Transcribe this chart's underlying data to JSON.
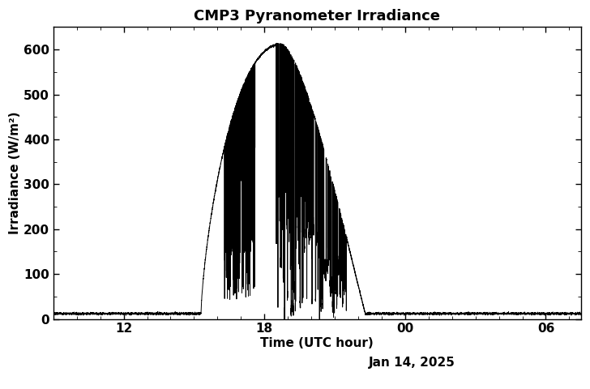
{
  "title": "CMP3 Pyranometer Irradiance",
  "xlabel": "Time (UTC hour)",
  "ylabel": "Irradiance (W/m²)",
  "date_label": "Jan 14, 2025",
  "ylim": [
    0,
    650
  ],
  "yticks": [
    0,
    100,
    200,
    300,
    400,
    500,
    600
  ],
  "xtick_positions": [
    12,
    18,
    24,
    30
  ],
  "xtick_labels": [
    "12",
    "18",
    "00",
    "06"
  ],
  "xlim_low": 9.0,
  "xlim_high": 31.5,
  "line_color": "black",
  "background_color": "white",
  "title_fontsize": 13,
  "label_fontsize": 11,
  "tick_fontsize": 11,
  "baseline": 12.0,
  "sunrise": 15.3,
  "sunset": 22.3,
  "solar_peak_time": 18.7,
  "solar_peak_val": 600.0,
  "noisy_rise_start": 16.3,
  "noisy_rise_end": 17.6,
  "noisy_peak_start": 18.5,
  "noisy_peak_end": 21.5
}
